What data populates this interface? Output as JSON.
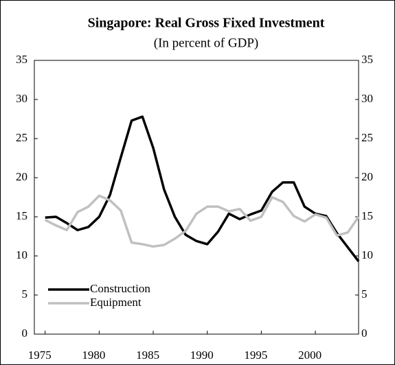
{
  "chart_data": {
    "type": "line",
    "title": "Singapore: Real Gross Fixed Investment",
    "subtitle": "(In percent of GDP)",
    "x": [
      1975,
      1976,
      1977,
      1978,
      1979,
      1980,
      1981,
      1982,
      1983,
      1984,
      1985,
      1986,
      1987,
      1988,
      1989,
      1990,
      1991,
      1992,
      1993,
      1994,
      1995,
      1996,
      1997,
      1998,
      1999,
      2000,
      2001,
      2002,
      2003,
      2004
    ],
    "series": [
      {
        "name": "Construction",
        "color": "#000000",
        "values": [
          14.9,
          15.0,
          14.2,
          13.3,
          13.7,
          15.0,
          17.8,
          22.6,
          27.3,
          27.8,
          23.8,
          18.5,
          15.0,
          12.7,
          11.9,
          11.5,
          13.1,
          15.4,
          14.7,
          15.3,
          15.8,
          18.2,
          19.4,
          19.4,
          16.3,
          15.4,
          15.1,
          12.9,
          11.1,
          9.3
        ]
      },
      {
        "name": "Equipment",
        "color": "#c0c0c0",
        "values": [
          14.6,
          13.9,
          13.3,
          15.6,
          16.3,
          17.7,
          17.1,
          15.8,
          11.7,
          11.5,
          11.2,
          11.4,
          12.2,
          13.2,
          15.4,
          16.3,
          16.3,
          15.7,
          16.0,
          14.5,
          15.0,
          17.5,
          16.9,
          15.1,
          14.4,
          15.3,
          14.9,
          12.6,
          13.0,
          15.0
        ]
      }
    ],
    "xlim": [
      1974,
      2004
    ],
    "xticks": [
      1975,
      1980,
      1985,
      1990,
      1995,
      2000
    ],
    "ylim": [
      0,
      35
    ],
    "yticks": [
      0,
      5,
      10,
      15,
      20,
      25,
      30,
      35
    ],
    "y2lim": [
      0,
      35
    ],
    "y2ticks": [
      0,
      5,
      10,
      15,
      20,
      25,
      30,
      35
    ],
    "legend": "lower left"
  }
}
